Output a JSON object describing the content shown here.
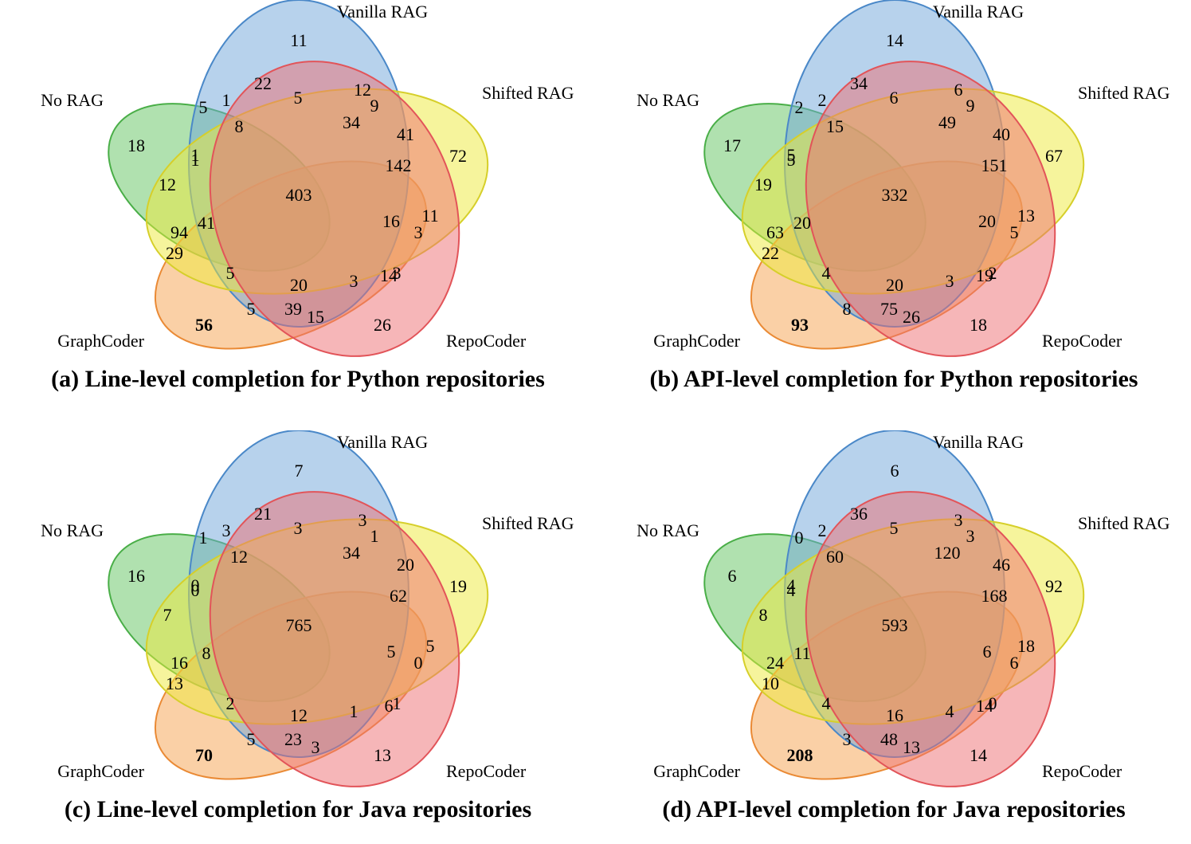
{
  "sets": {
    "vanilla_rag": {
      "label": "Vanilla RAG",
      "fill": "#6fa5d9",
      "stroke": "#4a88c8"
    },
    "shifted_rag": {
      "label": "Shifted RAG",
      "fill": "#eeea3a",
      "stroke": "#d6cf2a"
    },
    "no_rag": {
      "label": "No RAG",
      "fill": "#62c35f",
      "stroke": "#49ae47"
    },
    "graphcoder": {
      "label": "GraphCoder",
      "fill": "#f6a24e",
      "stroke": "#ea8a35"
    },
    "repocoder": {
      "label": "RepoCoder",
      "fill": "#ee6d72",
      "stroke": "#e25459"
    }
  },
  "panels": [
    {
      "caption": "(a) Line-level completion for Python repositories",
      "values": [
        "11",
        "72",
        "26",
        "56",
        "18",
        "22",
        "12",
        "41",
        "16",
        "11",
        "3",
        "5",
        "15",
        "39",
        "29",
        "94",
        "12",
        "1",
        "1",
        "5",
        "34",
        "142",
        "14",
        "3",
        "20",
        "5",
        "41",
        "8",
        "9",
        "3",
        "5",
        "1",
        "403"
      ],
      "bold_index": 3
    },
    {
      "caption": "(b) API-level completion for Python repositories",
      "values": [
        "14",
        "67",
        "18",
        "93",
        "17",
        "34",
        "6",
        "40",
        "20",
        "13",
        "5",
        "2",
        "26",
        "75",
        "22",
        "63",
        "19",
        "5",
        "2",
        "6",
        "49",
        "151",
        "19",
        "3",
        "20",
        "4",
        "20",
        "15",
        "9",
        "2",
        "8",
        "5",
        "332"
      ],
      "bold_index": 3
    },
    {
      "caption": "(c) Line-level completion for Java repositories",
      "values": [
        "7",
        "19",
        "13",
        "70",
        "16",
        "21",
        "3",
        "20",
        "5",
        "5",
        "0",
        "1",
        "3",
        "23",
        "13",
        "16",
        "7",
        "0",
        "3",
        "3",
        "34",
        "62",
        "6",
        "1",
        "12",
        "2",
        "8",
        "12",
        "1",
        "1",
        "5",
        "0",
        "765"
      ],
      "bold_index": 3
    },
    {
      "caption": "(d) API-level completion for Java repositories",
      "values": [
        "6",
        "92",
        "14",
        "208",
        "6",
        "36",
        "3",
        "46",
        "6",
        "18",
        "6",
        "0",
        "13",
        "48",
        "10",
        "24",
        "8",
        "4",
        "2",
        "5",
        "120",
        "168",
        "14",
        "4",
        "16",
        "4",
        "11",
        "60",
        "3",
        "0",
        "3",
        "4",
        "593"
      ],
      "bold_index": 3
    }
  ]
}
